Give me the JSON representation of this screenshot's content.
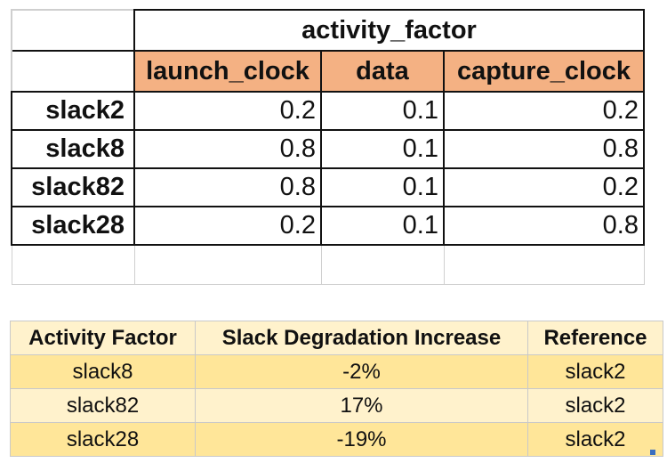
{
  "top_table": {
    "group_header": "activity_factor",
    "columns": [
      "launch_clock",
      "data",
      "capture_clock"
    ],
    "rows": [
      {
        "label": "slack2",
        "values": [
          "0.2",
          "0.1",
          "0.2"
        ]
      },
      {
        "label": "slack8",
        "values": [
          "0.8",
          "0.1",
          "0.8"
        ]
      },
      {
        "label": "slack82",
        "values": [
          "0.8",
          "0.1",
          "0.2"
        ]
      },
      {
        "label": "slack28",
        "values": [
          "0.2",
          "0.1",
          "0.8"
        ]
      }
    ]
  },
  "bottom_table": {
    "headers": [
      "Activity Factor",
      "Slack Degradation Increase",
      "Reference"
    ],
    "rows": [
      [
        "slack8",
        "-2%",
        "slack2"
      ],
      [
        "slack82",
        "17%",
        "slack2"
      ],
      [
        "slack28",
        "-19%",
        "slack2"
      ]
    ]
  },
  "colors": {
    "column_header_fill": "#f4b183",
    "bottom_header_fill": "#fff2cc",
    "bottom_row_band_dark": "#ffe699",
    "bottom_row_band_light": "#fff2cc"
  }
}
